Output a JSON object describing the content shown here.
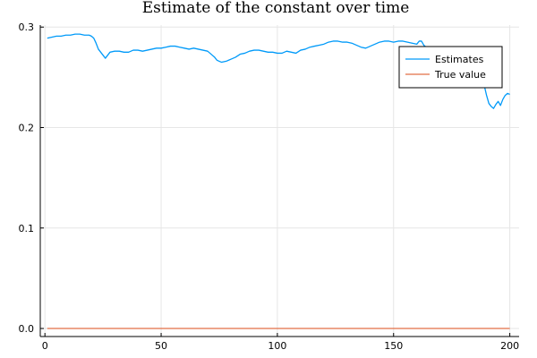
{
  "chart_data": {
    "type": "line",
    "title": "Estimate of the constant over time",
    "xlabel": "",
    "ylabel": "",
    "xlim": [
      -2,
      204
    ],
    "ylim": [
      -0.008,
      0.302
    ],
    "xticks": [
      0,
      50,
      100,
      150,
      200
    ],
    "xtick_labels": [
      "0",
      "50",
      "100",
      "150",
      "200"
    ],
    "yticks": [
      0.0,
      0.1,
      0.2,
      0.3
    ],
    "ytick_labels": [
      "0.0",
      "0.1",
      "0.2",
      "0.3"
    ],
    "grid": true,
    "legend_position": "top-right",
    "series": [
      {
        "name": "Estimates",
        "color": "#009AF9",
        "x": [
          1,
          3,
          5,
          7,
          9,
          11,
          13,
          15,
          17,
          19,
          20,
          21,
          22,
          23,
          24,
          25,
          26,
          27,
          28,
          30,
          32,
          34,
          36,
          38,
          40,
          42,
          44,
          46,
          48,
          50,
          52,
          54,
          56,
          58,
          60,
          62,
          64,
          66,
          68,
          70,
          71,
          72,
          73,
          74,
          75,
          76,
          78,
          80,
          82,
          84,
          86,
          88,
          90,
          92,
          94,
          96,
          98,
          100,
          102,
          104,
          106,
          108,
          110,
          112,
          114,
          116,
          118,
          120,
          122,
          124,
          126,
          128,
          130,
          132,
          134,
          136,
          138,
          140,
          142,
          144,
          146,
          148,
          150,
          152,
          154,
          156,
          158,
          160,
          161,
          162,
          163,
          164,
          166,
          168,
          170,
          172,
          174,
          176,
          178,
          180,
          182,
          184,
          186,
          188,
          189,
          190,
          191,
          192,
          193,
          194,
          195,
          196,
          197,
          198,
          199,
          200
        ],
        "y": [
          0.289,
          0.29,
          0.291,
          0.291,
          0.292,
          0.292,
          0.293,
          0.293,
          0.292,
          0.292,
          0.291,
          0.289,
          0.284,
          0.278,
          0.275,
          0.272,
          0.269,
          0.272,
          0.275,
          0.276,
          0.276,
          0.275,
          0.275,
          0.277,
          0.277,
          0.276,
          0.277,
          0.278,
          0.279,
          0.279,
          0.28,
          0.281,
          0.281,
          0.28,
          0.279,
          0.278,
          0.279,
          0.278,
          0.277,
          0.276,
          0.274,
          0.272,
          0.27,
          0.267,
          0.266,
          0.265,
          0.266,
          0.268,
          0.27,
          0.273,
          0.274,
          0.276,
          0.277,
          0.277,
          0.276,
          0.275,
          0.275,
          0.274,
          0.274,
          0.276,
          0.275,
          0.274,
          0.277,
          0.278,
          0.28,
          0.281,
          0.282,
          0.283,
          0.285,
          0.286,
          0.286,
          0.285,
          0.285,
          0.284,
          0.282,
          0.28,
          0.279,
          0.281,
          0.283,
          0.285,
          0.286,
          0.286,
          0.285,
          0.286,
          0.286,
          0.285,
          0.284,
          0.283,
          0.286,
          0.286,
          0.282,
          0.28,
          0.279,
          0.278,
          0.278,
          0.277,
          0.277,
          0.276,
          0.275,
          0.272,
          0.27,
          0.268,
          0.262,
          0.25,
          0.242,
          0.232,
          0.224,
          0.221,
          0.219,
          0.223,
          0.226,
          0.222,
          0.228,
          0.232,
          0.234,
          0.233
        ]
      },
      {
        "name": "True value",
        "color": "#E26F46",
        "x": [
          1,
          200
        ],
        "y": [
          0.0,
          0.0
        ]
      }
    ]
  }
}
